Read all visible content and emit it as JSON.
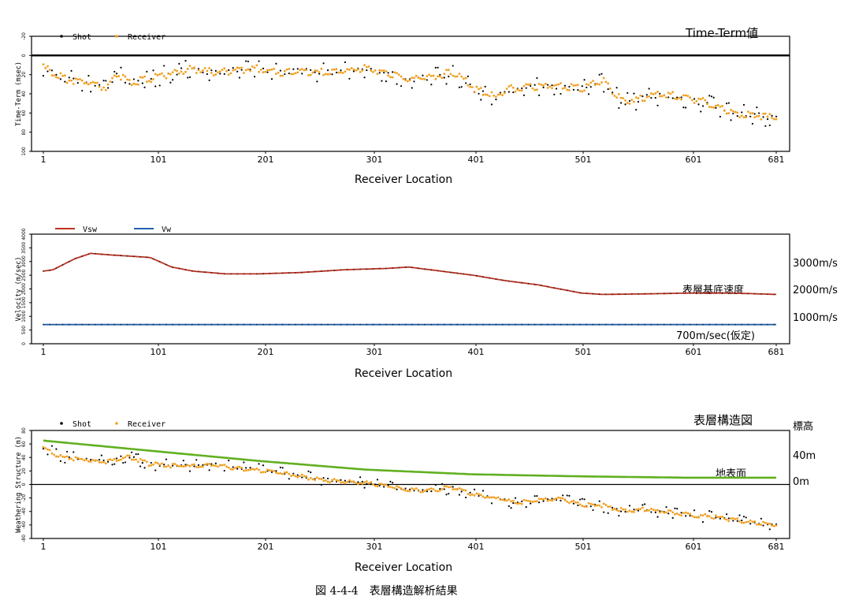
{
  "caption": "図 4-4-4　表層構造解析結果",
  "colors": {
    "shot": "#000000",
    "receiver": "#f0a020",
    "vsw": "#c03020",
    "vw": "#2060b0",
    "surface": "#60b020",
    "frame": "#000000"
  },
  "chart_data": [
    {
      "type": "scatter",
      "title": "Time-Term値",
      "xlabel": "Receiver Location",
      "ylabel": "Time-Term (msec)",
      "x_ticks": [
        "1",
        "101",
        "201",
        "301",
        "401",
        "501",
        "601",
        "681"
      ],
      "y_ticks": [
        "-20",
        "0",
        "20",
        "40",
        "60",
        "80",
        "100"
      ],
      "xlim": [
        1,
        681
      ],
      "ylim": [
        -20,
        100
      ],
      "y_inverted": true,
      "legend": [
        "Shot",
        "Receiver"
      ],
      "legend_position": "top-left",
      "series": [
        {
          "name": "Shot",
          "marker": "dot",
          "x": [
            1,
            20,
            40,
            60,
            70,
            80,
            100,
            120,
            140,
            160,
            180,
            200,
            220,
            240,
            260,
            280,
            300,
            320,
            340,
            360,
            380,
            390,
            400,
            410,
            420,
            430,
            440,
            460,
            480,
            500,
            520,
            530,
            540,
            560,
            580,
            600,
            620,
            640,
            660,
            681
          ],
          "y": [
            12,
            25,
            28,
            35,
            20,
            28,
            25,
            18,
            14,
            18,
            15,
            14,
            18,
            16,
            18,
            16,
            14,
            18,
            26,
            22,
            20,
            25,
            35,
            40,
            45,
            38,
            35,
            32,
            32,
            34,
            28,
            40,
            50,
            44,
            42,
            46,
            52,
            60,
            62,
            66
          ]
        },
        {
          "name": "Receiver",
          "marker": "dot",
          "x": [
            1,
            20,
            40,
            60,
            70,
            80,
            100,
            120,
            140,
            160,
            180,
            200,
            220,
            240,
            260,
            280,
            300,
            320,
            340,
            360,
            380,
            390,
            400,
            410,
            420,
            430,
            440,
            460,
            480,
            500,
            520,
            530,
            540,
            560,
            580,
            600,
            620,
            640,
            660,
            681
          ],
          "y": [
            12,
            24,
            28,
            34,
            20,
            28,
            25,
            18,
            14,
            18,
            15,
            13,
            18,
            16,
            18,
            16,
            13,
            18,
            25,
            22,
            18,
            24,
            34,
            38,
            44,
            36,
            34,
            32,
            31,
            34,
            26,
            40,
            48,
            43,
            40,
            45,
            50,
            60,
            62,
            65
          ]
        }
      ],
      "reference_line": {
        "y": 0,
        "label": ""
      }
    },
    {
      "type": "line",
      "title": "",
      "xlabel": "Receiver Location",
      "ylabel": "Velocity (m/sec)",
      "x_ticks": [
        "1",
        "101",
        "201",
        "301",
        "401",
        "501",
        "601",
        "681"
      ],
      "y_ticks": [
        "0",
        "500",
        "1000",
        "1500",
        "2000",
        "2500",
        "3000",
        "3500",
        "4000"
      ],
      "xlim": [
        1,
        681
      ],
      "ylim": [
        0,
        4000
      ],
      "legend": [
        "Vsw",
        "Vw"
      ],
      "legend_position": "top-left",
      "right_labels": [
        "3000m/s",
        "2000m/s",
        "1000m/s"
      ],
      "annotations": [
        "表層基底速度",
        "700m/sec(仮定)"
      ],
      "series": [
        {
          "name": "Vsw",
          "x": [
            1,
            10,
            30,
            45,
            60,
            80,
            100,
            120,
            140,
            170,
            200,
            240,
            280,
            320,
            340,
            370,
            400,
            430,
            460,
            500,
            520,
            560,
            600,
            640,
            681
          ],
          "y": [
            2650,
            2700,
            3100,
            3300,
            3250,
            3200,
            3150,
            2800,
            2650,
            2550,
            2550,
            2600,
            2700,
            2750,
            2800,
            2650,
            2500,
            2300,
            2150,
            1850,
            1800,
            1820,
            1850,
            1850,
            1800
          ]
        },
        {
          "name": "Vw",
          "x": [
            1,
            681
          ],
          "y": [
            700,
            700
          ]
        }
      ]
    },
    {
      "type": "scatter",
      "title": "表層構造図",
      "xlabel": "Receiver Location",
      "ylabel": "Weathering Structure (m)",
      "x_ticks": [
        "1",
        "101",
        "201",
        "301",
        "401",
        "501",
        "601",
        "681"
      ],
      "y_ticks": [
        "-80",
        "-60",
        "-40",
        "-20",
        "0",
        "20",
        "40",
        "60",
        "80"
      ],
      "xlim": [
        1,
        681
      ],
      "ylim": [
        -80,
        80
      ],
      "legend": [
        "Shot",
        "Receiver"
      ],
      "legend_position": "top-left",
      "right_labels": [
        "標高",
        "40m",
        "0m"
      ],
      "annotations": [
        "地表面"
      ],
      "series": [
        {
          "name": "地表面",
          "x": [
            1,
            100,
            200,
            300,
            400,
            500,
            600,
            681
          ],
          "y": [
            65,
            50,
            35,
            22,
            15,
            12,
            10,
            10
          ]
        },
        {
          "name": "Shot",
          "marker": "dot",
          "x": [
            1,
            20,
            40,
            60,
            80,
            100,
            120,
            140,
            160,
            180,
            200,
            220,
            240,
            260,
            280,
            300,
            320,
            340,
            360,
            380,
            400,
            420,
            440,
            460,
            480,
            500,
            520,
            540,
            560,
            580,
            600,
            620,
            640,
            660,
            681
          ],
          "y": [
            55,
            40,
            38,
            35,
            42,
            30,
            28,
            28,
            30,
            25,
            22,
            18,
            12,
            8,
            5,
            2,
            -3,
            -8,
            -10,
            -5,
            -15,
            -20,
            -28,
            -25,
            -22,
            -30,
            -32,
            -40,
            -38,
            -42,
            -45,
            -48,
            -52,
            -58,
            -60
          ]
        },
        {
          "name": "Receiver",
          "marker": "dot",
          "x": [
            1,
            20,
            40,
            60,
            80,
            100,
            120,
            140,
            160,
            180,
            200,
            220,
            240,
            260,
            280,
            300,
            320,
            340,
            360,
            380,
            400,
            420,
            440,
            460,
            480,
            500,
            520,
            540,
            560,
            580,
            600,
            620,
            640,
            660,
            681
          ],
          "y": [
            54,
            39,
            37,
            34,
            41,
            30,
            28,
            27,
            29,
            24,
            21,
            18,
            12,
            7,
            4,
            2,
            -3,
            -8,
            -9,
            -4,
            -15,
            -20,
            -27,
            -24,
            -21,
            -30,
            -31,
            -39,
            -37,
            -41,
            -45,
            -47,
            -52,
            -57,
            -60
          ]
        }
      ],
      "reference_line": {
        "y": 0,
        "label": ""
      }
    }
  ]
}
